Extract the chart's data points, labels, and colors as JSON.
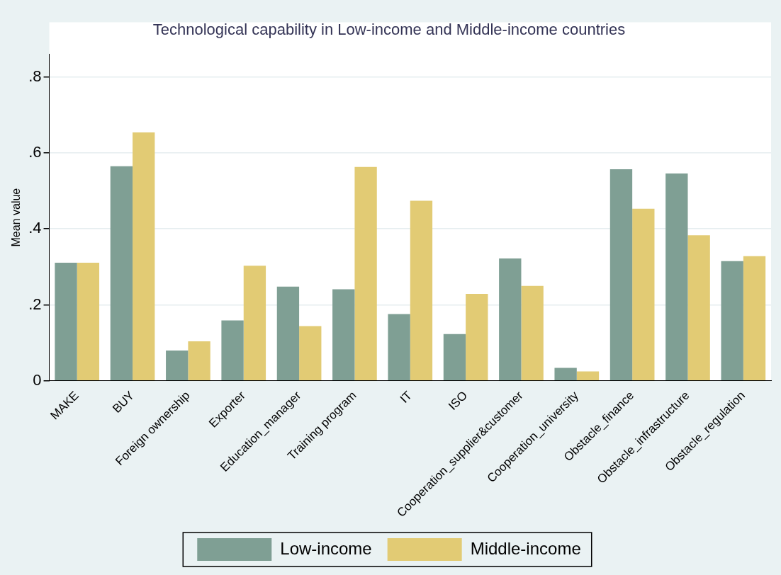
{
  "chart_data": {
    "type": "bar",
    "title": "Technological capability in Low-income and Middle-income countries",
    "ylabel": "Mean value",
    "categories": [
      "MAKE",
      "BUY",
      "Foreign ownership",
      "Exporter",
      "Education_manager",
      "Training program",
      "IT",
      "ISO",
      "Cooperation_supplier&customer",
      "Cooperation_university",
      "Obstacle_finance",
      "Obstacle_infrastructure",
      "Obstacle_regulation"
    ],
    "series": [
      {
        "name": "Low-income",
        "color": "#7f9f94",
        "values": [
          0.311,
          0.565,
          0.08,
          0.159,
          0.248,
          0.241,
          0.176,
          0.123,
          0.322,
          0.034,
          0.557,
          0.546,
          0.315
        ]
      },
      {
        "name": "Middle-income",
        "color": "#e2cb74",
        "values": [
          0.311,
          0.654,
          0.104,
          0.303,
          0.144,
          0.563,
          0.474,
          0.229,
          0.25,
          0.025,
          0.453,
          0.383,
          0.328
        ]
      }
    ],
    "ylim": [
      0,
      0.86
    ],
    "yticks": [
      0,
      {
        "value": 0.2,
        "label": ".2"
      },
      {
        "value": 0.4,
        "label": ".4"
      },
      {
        "value": 0.6,
        "label": ".6"
      },
      {
        "value": 0.8,
        "label": ".8"
      }
    ],
    "grid": "y",
    "legend": "bottom"
  }
}
